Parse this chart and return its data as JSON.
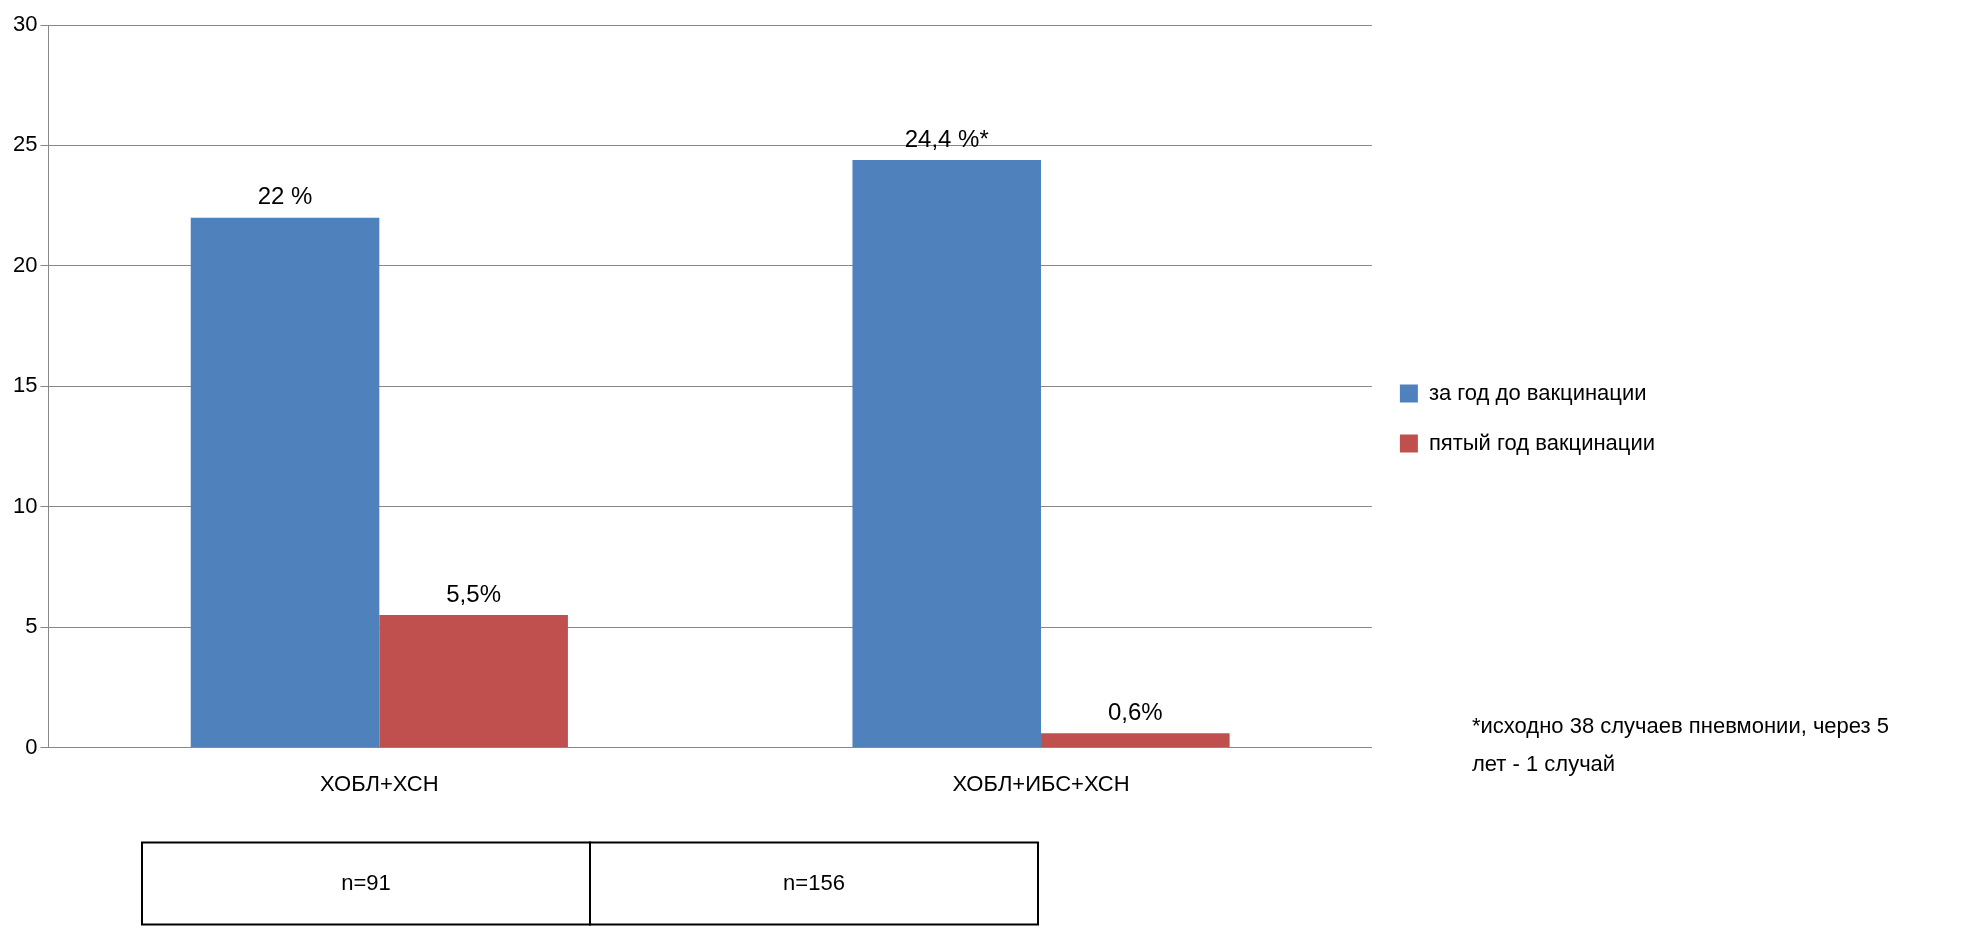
{
  "chart_data": {
    "type": "bar",
    "categories": [
      "ХОБЛ+ХСН",
      "ХОБЛ+ИБС+ХСН"
    ],
    "series": [
      {
        "name": "за год до вакцинации",
        "color": "#4f81bd",
        "values": [
          22,
          24.4
        ],
        "value_labels": [
          "22 %",
          "24,4 %*"
        ]
      },
      {
        "name": "пятый год вакцинации",
        "color": "#c0504d",
        "values": [
          5.5,
          0.6
        ],
        "value_labels": [
          "5,5%",
          "0,6%"
        ]
      }
    ],
    "ylim": [
      0,
      30
    ],
    "yticks": [
      0,
      5,
      10,
      15,
      20,
      25,
      30
    ],
    "grid": "y",
    "legend": "right",
    "annotations": [
      "*исходно 38 случаев пневмонии, через 5 лет - 1 случай",
      "n=91",
      "n=156"
    ]
  }
}
